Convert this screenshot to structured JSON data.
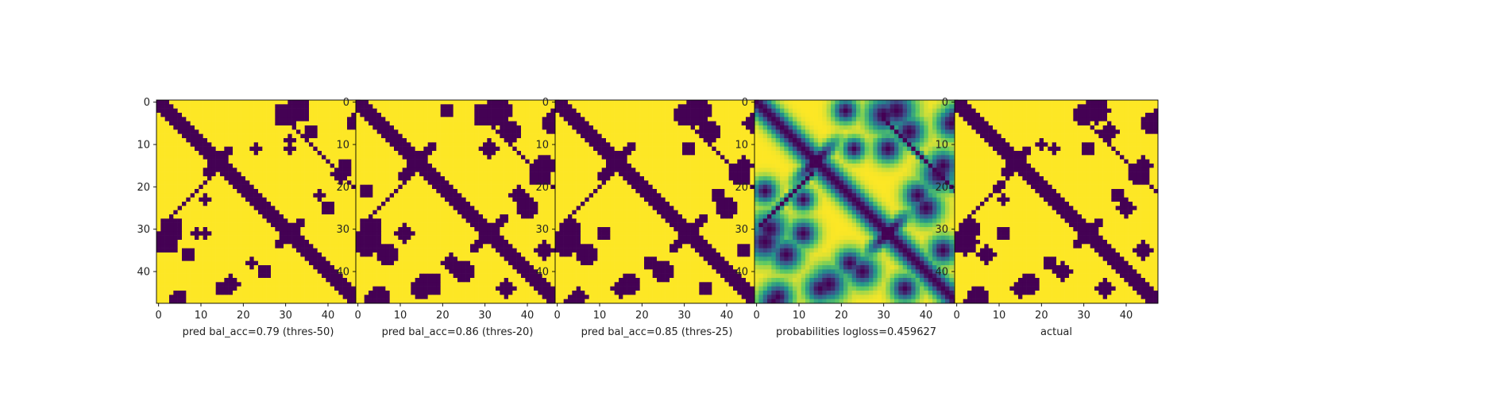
{
  "colors": {
    "background": "#440154",
    "contact": "#fde725",
    "colormap": "viridis"
  },
  "chart_data": [
    {
      "type": "heatmap",
      "xlabel": "pred bal_acc=0.79 (thres-50)",
      "xticks": [
        0,
        10,
        20,
        30,
        40
      ],
      "yticks": [
        0,
        10,
        20,
        30,
        40
      ],
      "xlim": [
        -0.5,
        47.5
      ],
      "ylim": [
        47.5,
        -0.5
      ],
      "size": 48,
      "pattern": {
        "thickness": 1.8,
        "cross_radius": 4.5,
        "upper_scale": 0.55,
        "lower_scale": 0.6,
        "blobs": [
          [
            3,
            30,
            2.5
          ],
          [
            4,
            47,
            1.5
          ],
          [
            17,
            43,
            1.8
          ],
          [
            25,
            40,
            1.6
          ],
          [
            33,
            2,
            2.5
          ],
          [
            38,
            22,
            1.2
          ],
          [
            44,
            15,
            1.5
          ],
          [
            46,
            5,
            1.5
          ],
          [
            7,
            36,
            1.4
          ],
          [
            11,
            23,
            1.2
          ],
          [
            31,
            11,
            1.2
          ],
          [
            9,
            31,
            1.0
          ]
        ]
      }
    },
    {
      "type": "heatmap",
      "xlabel": "pred bal_acc=0.86 (thres-20)",
      "xticks": [
        0,
        10,
        20,
        30,
        40
      ],
      "yticks": [
        0,
        10,
        20,
        30,
        40
      ],
      "xlim": [
        -0.5,
        47.5
      ],
      "ylim": [
        47.5,
        -0.5
      ],
      "size": 48,
      "pattern": {
        "thickness": 2.4,
        "cross_radius": 5.5,
        "upper_scale": 1.0,
        "lower_scale": 1.0,
        "blobs": [
          [
            3,
            30,
            2.5
          ],
          [
            4,
            47,
            2.0
          ],
          [
            17,
            43,
            2.5
          ],
          [
            25,
            40,
            2.2
          ],
          [
            33,
            2,
            3.0
          ],
          [
            38,
            22,
            1.8
          ],
          [
            44,
            15,
            2.0
          ],
          [
            46,
            5,
            2.0
          ],
          [
            7,
            36,
            2.2
          ],
          [
            31,
            11,
            1.8
          ],
          [
            35,
            44,
            1.8
          ],
          [
            21,
            2,
            1.5
          ]
        ]
      }
    },
    {
      "type": "heatmap",
      "xlabel": "pred bal_acc=0.85 (thres-25)",
      "xticks": [
        0,
        10,
        20,
        30,
        40
      ],
      "yticks": [
        0,
        10,
        20,
        30,
        40
      ],
      "xlim": [
        -0.5,
        47.5
      ],
      "ylim": [
        47.5,
        -0.5
      ],
      "size": 48,
      "pattern": {
        "thickness": 2.2,
        "cross_radius": 5.2,
        "upper_scale": 0.9,
        "lower_scale": 0.95,
        "blobs": [
          [
            3,
            30,
            2.4
          ],
          [
            4,
            47,
            1.8
          ],
          [
            17,
            43,
            2.2
          ],
          [
            25,
            40,
            2.0
          ],
          [
            33,
            2,
            2.8
          ],
          [
            38,
            22,
            1.6
          ],
          [
            44,
            15,
            1.8
          ],
          [
            46,
            5,
            1.8
          ],
          [
            7,
            36,
            2.0
          ],
          [
            31,
            11,
            1.6
          ],
          [
            35,
            44,
            1.6
          ]
        ]
      }
    },
    {
      "type": "heatmap",
      "xlabel": "probabilities logloss=0.459627",
      "xticks": [
        0,
        10,
        20,
        30,
        40
      ],
      "yticks": [
        0,
        10,
        20,
        30,
        40
      ],
      "xlim": [
        -0.5,
        47.5
      ],
      "ylim": [
        47.5,
        -0.5
      ],
      "size": 48,
      "continuous": true,
      "value_range": [
        0,
        1
      ],
      "pattern": {
        "thickness": 2.6,
        "cross_radius": 5.5,
        "upper_scale": 1.0,
        "lower_scale": 1.0,
        "blobs": [
          [
            3,
            30,
            2.8
          ],
          [
            4,
            47,
            2.4
          ],
          [
            17,
            43,
            2.8
          ],
          [
            25,
            40,
            2.5
          ],
          [
            33,
            2,
            3.0
          ],
          [
            38,
            22,
            2.2
          ],
          [
            44,
            15,
            2.4
          ],
          [
            46,
            5,
            2.4
          ],
          [
            7,
            36,
            2.5
          ],
          [
            31,
            11,
            2.2
          ],
          [
            35,
            44,
            2.2
          ],
          [
            21,
            2,
            2.0
          ],
          [
            11,
            23,
            1.8
          ]
        ]
      }
    },
    {
      "type": "heatmap",
      "xlabel": "actual",
      "xticks": [
        0,
        10,
        20,
        30,
        40
      ],
      "yticks": [
        0,
        10,
        20,
        30,
        40
      ],
      "xlim": [
        -0.5,
        47.5
      ],
      "ylim": [
        47.5,
        -0.5
      ],
      "size": 48,
      "pattern": {
        "thickness": 2.0,
        "cross_radius": 5.0,
        "upper_scale": 0.7,
        "lower_scale": 0.75,
        "blobs": [
          [
            3,
            30,
            2.0
          ],
          [
            4,
            47,
            1.8
          ],
          [
            17,
            43,
            2.2
          ],
          [
            25,
            40,
            1.8
          ],
          [
            33,
            2,
            2.6
          ],
          [
            38,
            22,
            1.4
          ],
          [
            44,
            15,
            1.8
          ],
          [
            46,
            5,
            2.0
          ],
          [
            7,
            36,
            1.8
          ],
          [
            31,
            11,
            1.4
          ],
          [
            35,
            44,
            1.8
          ],
          [
            20,
            10,
            1.2
          ],
          [
            11,
            23,
            1.2
          ]
        ]
      }
    }
  ]
}
